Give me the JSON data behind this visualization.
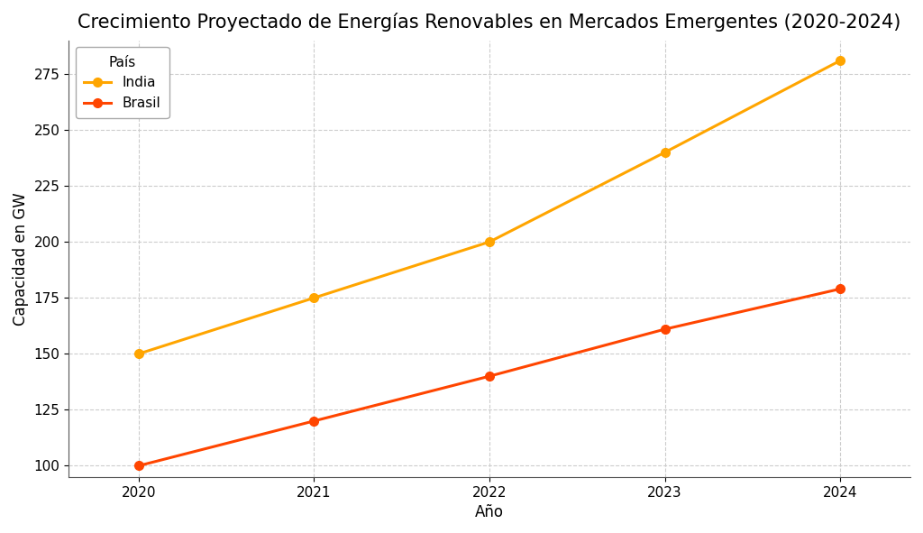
{
  "title": "Crecimiento Proyectado de Energías Renovables en Mercados Emergentes (2020-2024)",
  "xlabel": "Año",
  "ylabel": "Capacidad en GW",
  "legend_title": "País",
  "years": [
    2020,
    2021,
    2022,
    2023,
    2024
  ],
  "series": [
    {
      "label": "India",
      "values": [
        150,
        175,
        200,
        240,
        281
      ],
      "color": "#FFA500",
      "marker": "o"
    },
    {
      "label": "Brasil",
      "values": [
        100,
        120,
        140,
        161,
        179
      ],
      "color": "#FF4500",
      "marker": "o"
    }
  ],
  "ylim": [
    95,
    290
  ],
  "yticks": [
    100,
    125,
    150,
    175,
    200,
    225,
    250,
    275
  ],
  "background_color": "#ffffff",
  "grid_color": "#cccccc",
  "title_fontsize": 15,
  "axis_fontsize": 12,
  "tick_fontsize": 11,
  "legend_fontsize": 11,
  "figsize": [
    10.24,
    5.91
  ],
  "dpi": 100
}
